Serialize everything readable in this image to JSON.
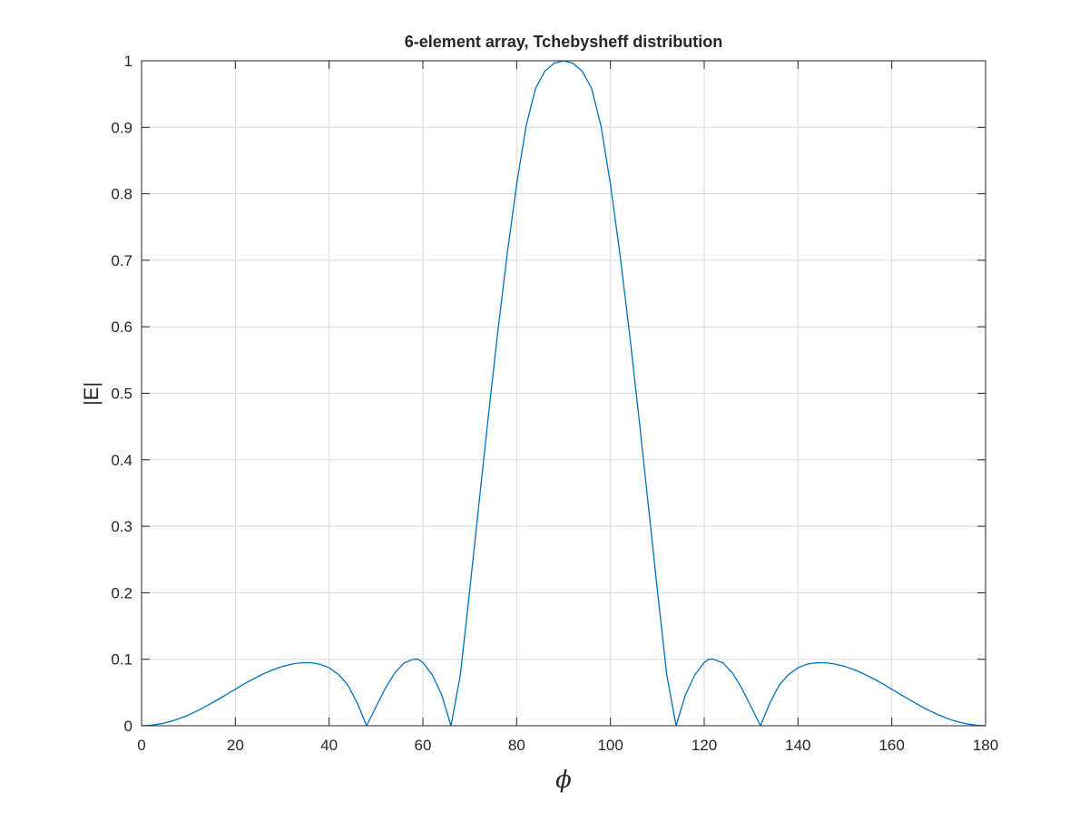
{
  "chart_data": {
    "type": "line",
    "title": "6-element array, Tchebysheff distribution",
    "xlabel": "ϕ",
    "ylabel": "|E|",
    "xlim": [
      0,
      180
    ],
    "ylim": [
      0,
      1
    ],
    "xticks": [
      0,
      20,
      40,
      60,
      80,
      100,
      120,
      140,
      160,
      180
    ],
    "yticks": [
      0,
      0.1,
      0.2,
      0.3,
      0.4,
      0.5,
      0.6,
      0.7,
      0.8,
      0.9,
      1
    ],
    "xtick_labels": [
      "0",
      "20",
      "40",
      "60",
      "80",
      "100",
      "120",
      "140",
      "160",
      "180"
    ],
    "ytick_labels": [
      "0",
      "0.1",
      "0.2",
      "0.3",
      "0.4",
      "0.5",
      "0.6",
      "0.7",
      "0.8",
      "0.9",
      "1"
    ],
    "grid": true,
    "series": [
      {
        "color": "#0072bd",
        "x": [
          0,
          2,
          4,
          6,
          8,
          10,
          12,
          14,
          16,
          18,
          20,
          22,
          24,
          26,
          28,
          30,
          32,
          34,
          36,
          38,
          40,
          42,
          44,
          46,
          48,
          50,
          52,
          54,
          56,
          58,
          59,
          60,
          62,
          64,
          66,
          68,
          70,
          72,
          74,
          76,
          78,
          80,
          82,
          84,
          86,
          88,
          90,
          92,
          94,
          96,
          98,
          100,
          102,
          104,
          106,
          108,
          110,
          112,
          114,
          116,
          118,
          120,
          121,
          122,
          124,
          126,
          128,
          130,
          132,
          134,
          136,
          138,
          140,
          142,
          144,
          146,
          148,
          150,
          152,
          154,
          156,
          158,
          160,
          162,
          164,
          166,
          168,
          170,
          172,
          174,
          176,
          178,
          180
        ],
        "y": [
          0,
          0.0008,
          0.0028,
          0.0062,
          0.0106,
          0.0162,
          0.0228,
          0.0302,
          0.0382,
          0.0465,
          0.055,
          0.0633,
          0.0711,
          0.0781,
          0.0842,
          0.0891,
          0.0926,
          0.0946,
          0.0948,
          0.0926,
          0.0872,
          0.0771,
          0.0612,
          0.0342,
          0,
          0.0285,
          0.0565,
          0.0794,
          0.0945,
          0.1,
          0.1,
          0.0952,
          0.0764,
          0.0466,
          0,
          0.0771,
          0.2048,
          0.3369,
          0.4682,
          0.5941,
          0.7107,
          0.8142,
          0.9015,
          0.9581,
          0.9843,
          0.9962,
          1,
          0.9962,
          0.9843,
          0.9581,
          0.9015,
          0.8142,
          0.7107,
          0.5941,
          0.4682,
          0.3369,
          0.2048,
          0.0771,
          0,
          0.0466,
          0.0764,
          0.0952,
          0.1,
          0.1,
          0.0945,
          0.0794,
          0.0565,
          0.0285,
          0,
          0.0342,
          0.0612,
          0.0771,
          0.0872,
          0.0926,
          0.0948,
          0.0946,
          0.0926,
          0.0891,
          0.0842,
          0.0781,
          0.0711,
          0.0633,
          0.055,
          0.0465,
          0.0382,
          0.0302,
          0.0228,
          0.0162,
          0.0106,
          0.0062,
          0.0028,
          0.0008,
          0
        ]
      }
    ]
  }
}
